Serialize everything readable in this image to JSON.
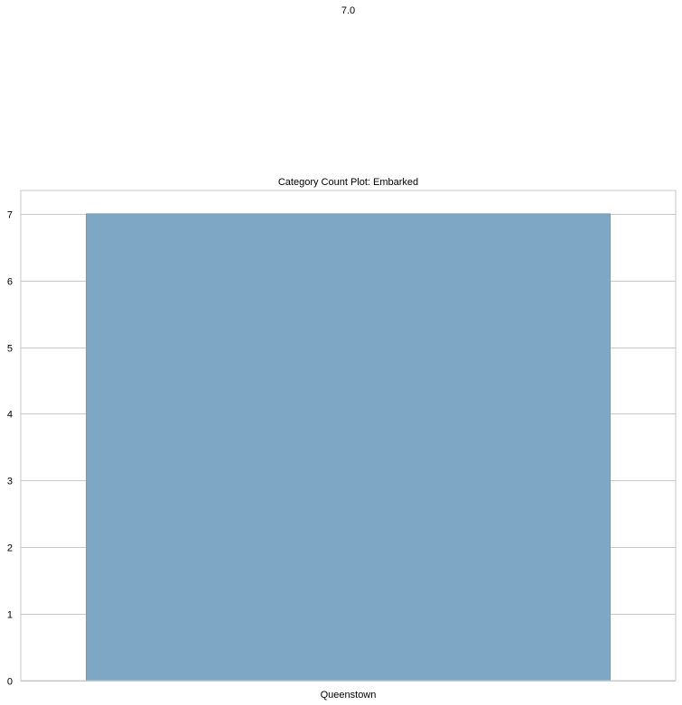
{
  "chart_data": {
    "type": "bar",
    "title": "Category Count Plot: Embarked",
    "xlabel": "",
    "ylabel": "",
    "categories": [
      "Queenstown"
    ],
    "values": [
      7
    ],
    "data_labels": [
      "7.0"
    ],
    "ylim": [
      0,
      7.35
    ],
    "yticks": [
      0,
      1,
      2,
      3,
      4,
      5,
      6,
      7
    ],
    "grid": "horizontal",
    "legend": "none",
    "colors": {
      "bar": "#7ea7c5",
      "bar_edge": "#6a92ae",
      "grid": "#c8c8c8",
      "frame": "#c8c8c8",
      "text": "#000000",
      "background": "#ffffff"
    }
  }
}
